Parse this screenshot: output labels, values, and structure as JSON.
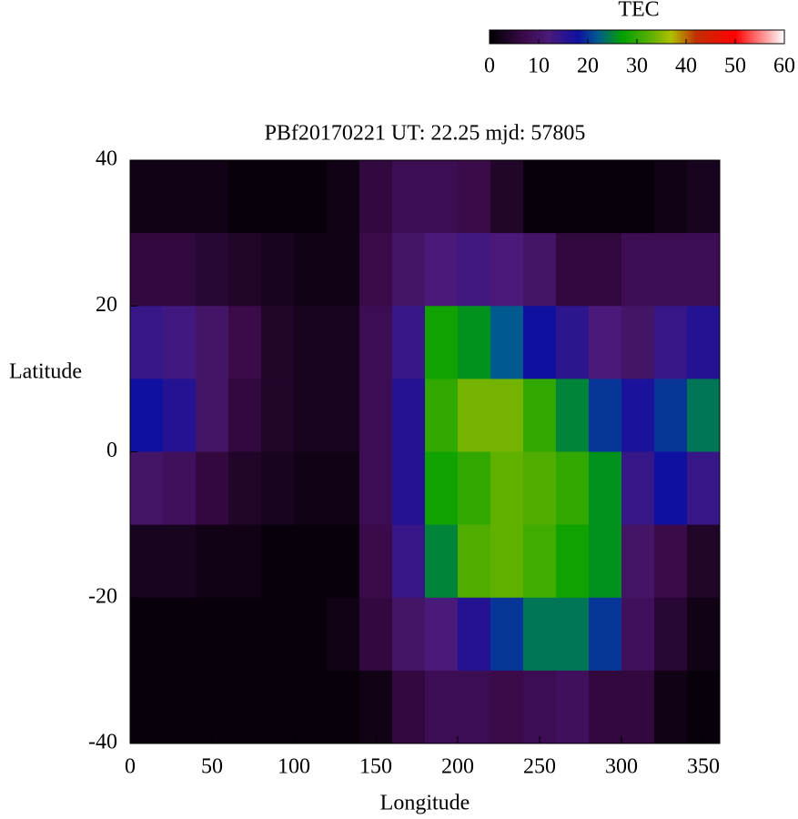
{
  "chart_data": {
    "type": "heatmap",
    "title": "PBf20170221  UT: 22.25  mjd: 57805",
    "x_label": "Longitude",
    "y_label": "Latitude",
    "colorbar_label": "TEC",
    "x": [
      10,
      30,
      50,
      70,
      90,
      110,
      130,
      150,
      170,
      190,
      210,
      230,
      250,
      270,
      290,
      310,
      330,
      350
    ],
    "y": [
      35,
      25,
      15,
      5,
      -5,
      -15,
      -25,
      -35
    ],
    "z": [
      [
        2,
        2,
        2,
        1,
        1,
        1,
        2,
        6,
        8,
        8,
        7,
        4,
        1,
        1,
        1,
        1,
        2,
        3
      ],
      [
        6,
        6,
        5,
        4,
        3,
        2,
        2,
        7,
        10,
        12,
        13,
        12,
        10,
        6,
        6,
        8,
        8,
        8
      ],
      [
        14,
        13,
        10,
        7,
        4,
        3,
        3,
        8,
        14,
        28,
        26,
        22,
        18,
        15,
        12,
        10,
        14,
        16
      ],
      [
        18,
        16,
        10,
        6,
        4,
        3,
        3,
        8,
        16,
        30,
        34,
        34,
        30,
        25,
        20,
        17,
        20,
        24
      ],
      [
        10,
        9,
        6,
        4,
        3,
        2,
        2,
        8,
        16,
        28,
        30,
        33,
        32,
        30,
        26,
        14,
        18,
        14
      ],
      [
        3,
        3,
        2,
        2,
        1,
        1,
        1,
        7,
        14,
        25,
        32,
        33,
        31,
        28,
        26,
        10,
        7,
        4
      ],
      [
        1,
        1,
        1,
        1,
        1,
        1,
        2,
        6,
        10,
        12,
        16,
        20,
        24,
        24,
        20,
        9,
        5,
        2
      ],
      [
        1,
        1,
        1,
        1,
        1,
        1,
        1,
        2,
        6,
        8,
        8,
        7,
        8,
        9,
        6,
        6,
        2,
        1
      ]
    ],
    "xlim": [
      0,
      360
    ],
    "ylim": [
      -40,
      40
    ],
    "xticks": [
      0,
      50,
      100,
      150,
      200,
      250,
      300,
      350
    ],
    "yticks": [
      -40,
      -20,
      0,
      20,
      40
    ],
    "clim": [
      0,
      60
    ],
    "colorbar_ticks": [
      0,
      10,
      20,
      30,
      40,
      50,
      60
    ],
    "colormap": [
      {
        "value": 0,
        "color": "#000000"
      },
      {
        "value": 7,
        "color": "#3a0a4a"
      },
      {
        "value": 12,
        "color": "#4a1a7a"
      },
      {
        "value": 18,
        "color": "#1010a0"
      },
      {
        "value": 22,
        "color": "#005a90"
      },
      {
        "value": 27,
        "color": "#00a000"
      },
      {
        "value": 33,
        "color": "#60b000"
      },
      {
        "value": 37,
        "color": "#b0c000"
      },
      {
        "value": 42,
        "color": "#c03000"
      },
      {
        "value": 50,
        "color": "#ff0000"
      },
      {
        "value": 60,
        "color": "#ffffff"
      }
    ]
  }
}
